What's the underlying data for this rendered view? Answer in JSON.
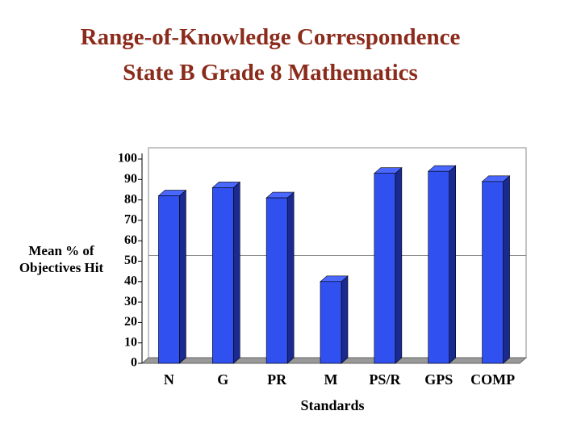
{
  "chart_data": {
    "type": "bar3d",
    "title": "Range-of-Knowledge Correspondence",
    "subtitle": "State B Grade 8 Mathematics",
    "y_label": "Mean % of Objectives Hit",
    "x_label": "Standards",
    "categories": [
      "N",
      "G",
      "PR",
      "M",
      "PS/R",
      "GPS",
      "COMP"
    ],
    "values": [
      82,
      86,
      81,
      40,
      93,
      94,
      89
    ],
    "color": "#3050f0",
    "ylim": [
      0,
      100
    ],
    "yticks": [
      0,
      10,
      20,
      30,
      40,
      50,
      60,
      70,
      80,
      90,
      100
    ],
    "ygrid": [
      50
    ]
  }
}
